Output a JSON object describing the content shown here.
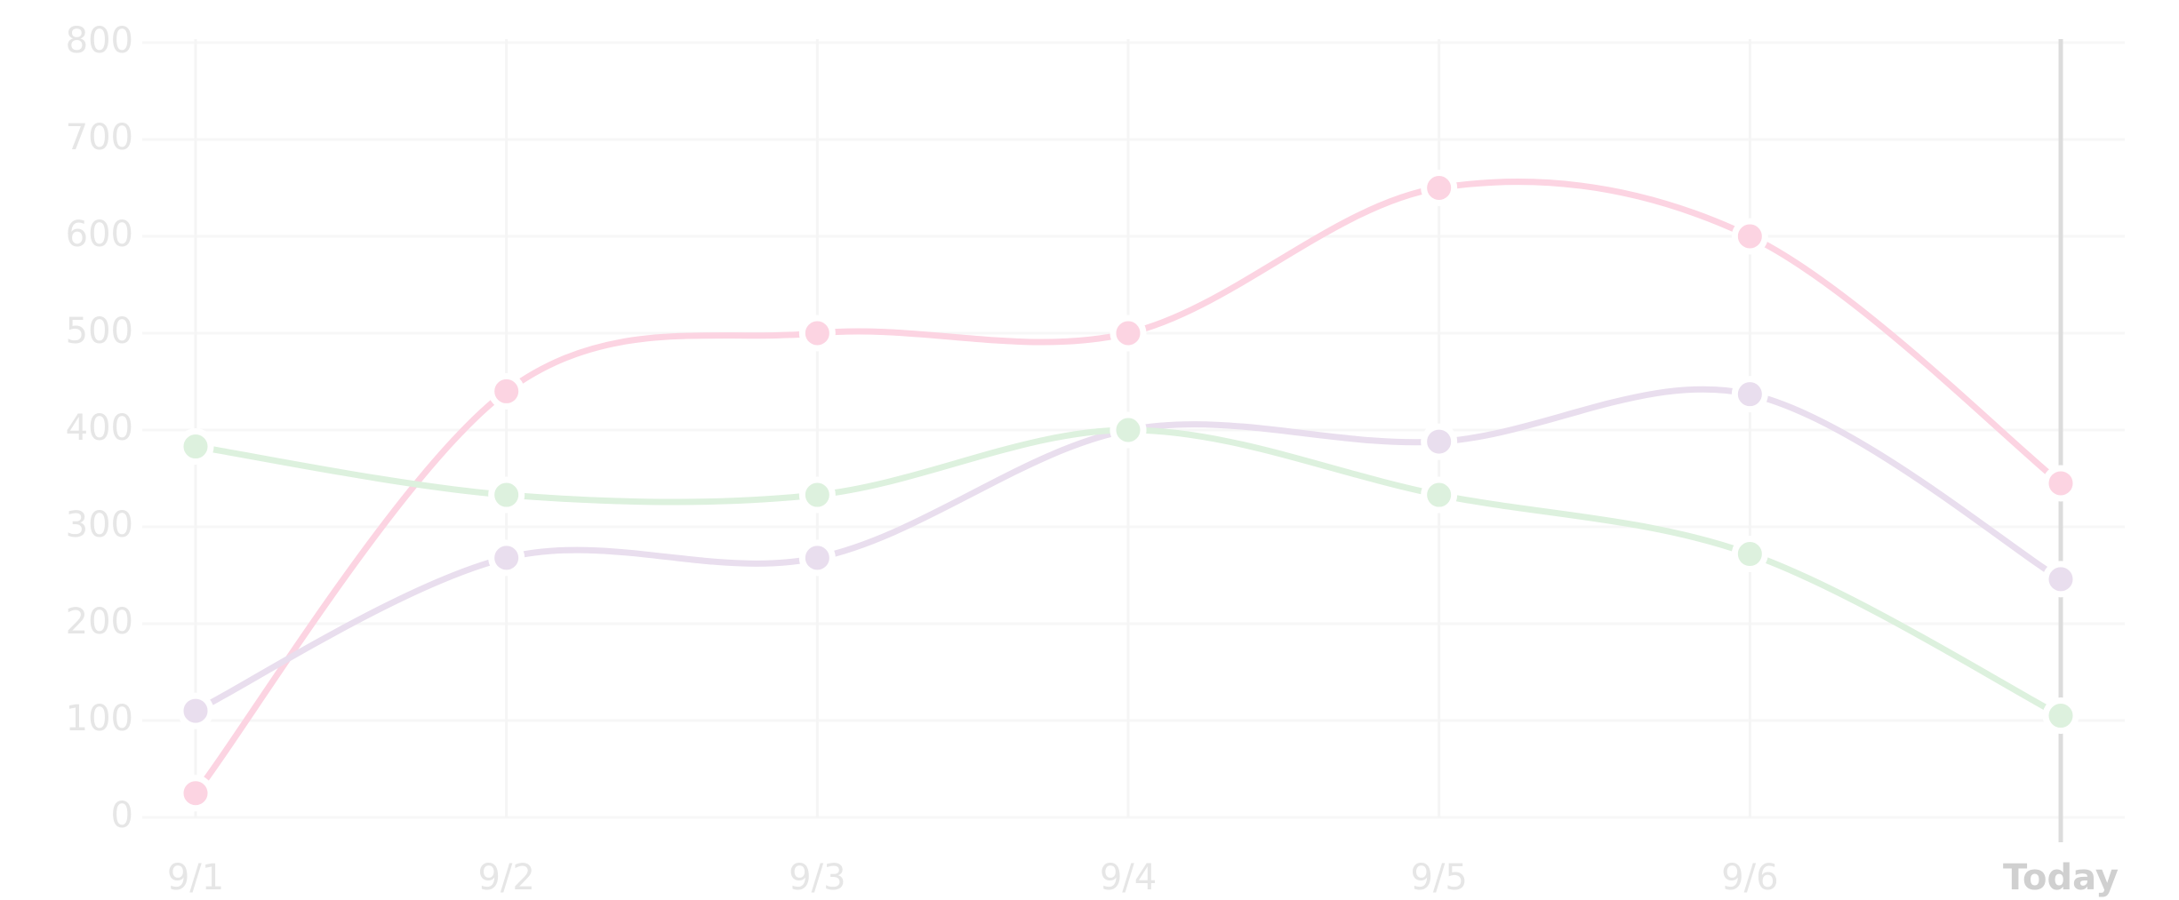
{
  "chart_data": {
    "type": "line",
    "categories": [
      "9/1",
      "9/2",
      "9/3",
      "9/4",
      "9/5",
      "9/6",
      "Today"
    ],
    "series": [
      {
        "color": "#fcd4e2",
        "values": [
          25,
          440,
          500,
          500,
          650,
          600,
          345
        ]
      },
      {
        "color": "#e9deee",
        "values": [
          110,
          268,
          268,
          400,
          388,
          437,
          246
        ]
      },
      {
        "color": "#ddf1de",
        "values": [
          383,
          333,
          333,
          400,
          333,
          272,
          105
        ]
      }
    ],
    "ylim": [
      0,
      800
    ],
    "yticks": [
      0,
      100,
      200,
      300,
      400,
      500,
      600,
      700,
      800
    ],
    "grid": true
  }
}
